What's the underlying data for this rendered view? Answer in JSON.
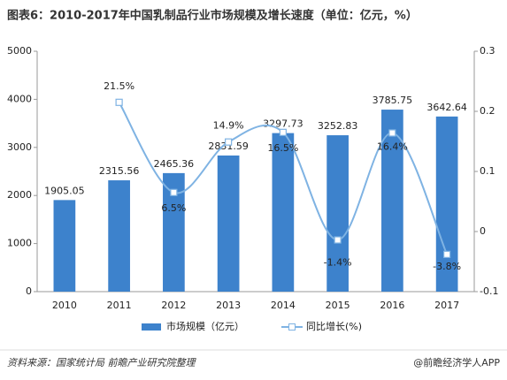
{
  "chart_data": {
    "type": "combo",
    "title": "图表6：2010-2017年中国乳制品行业市场规模及增长速度（单位：亿元，%）",
    "categories": [
      "2010",
      "2011",
      "2012",
      "2013",
      "2014",
      "2015",
      "2016",
      "2017"
    ],
    "series": [
      {
        "name": "市场规模（亿元）",
        "type": "bar",
        "color": "#3d82cc",
        "axis": "y",
        "values": [
          1905.05,
          2315.56,
          2465.36,
          2831.59,
          3297.73,
          3252.83,
          3785.75,
          3642.64
        ]
      },
      {
        "name": "同比增长(%)",
        "type": "line",
        "color": "#7fb3e3",
        "axis": "y2",
        "values": [
          null,
          0.215,
          0.065,
          0.149,
          0.165,
          -0.014,
          0.164,
          -0.038
        ],
        "value_labels": [
          null,
          "21.5%",
          "6.5%",
          "14.9%",
          "16.5%",
          "-1.4%",
          "16.4%",
          "-3.8%"
        ]
      }
    ],
    "ylim": [
      0,
      5000
    ],
    "yticks": [
      0,
      1000,
      2000,
      3000,
      4000,
      5000
    ],
    "y2lim": [
      -0.1,
      0.3
    ],
    "y2ticks": [
      -0.1,
      0,
      0.1,
      0.2,
      0.3
    ],
    "source": "资料来源：国家统计局 前瞻产业研究院整理",
    "brand": "@前瞻经济学人APP"
  }
}
